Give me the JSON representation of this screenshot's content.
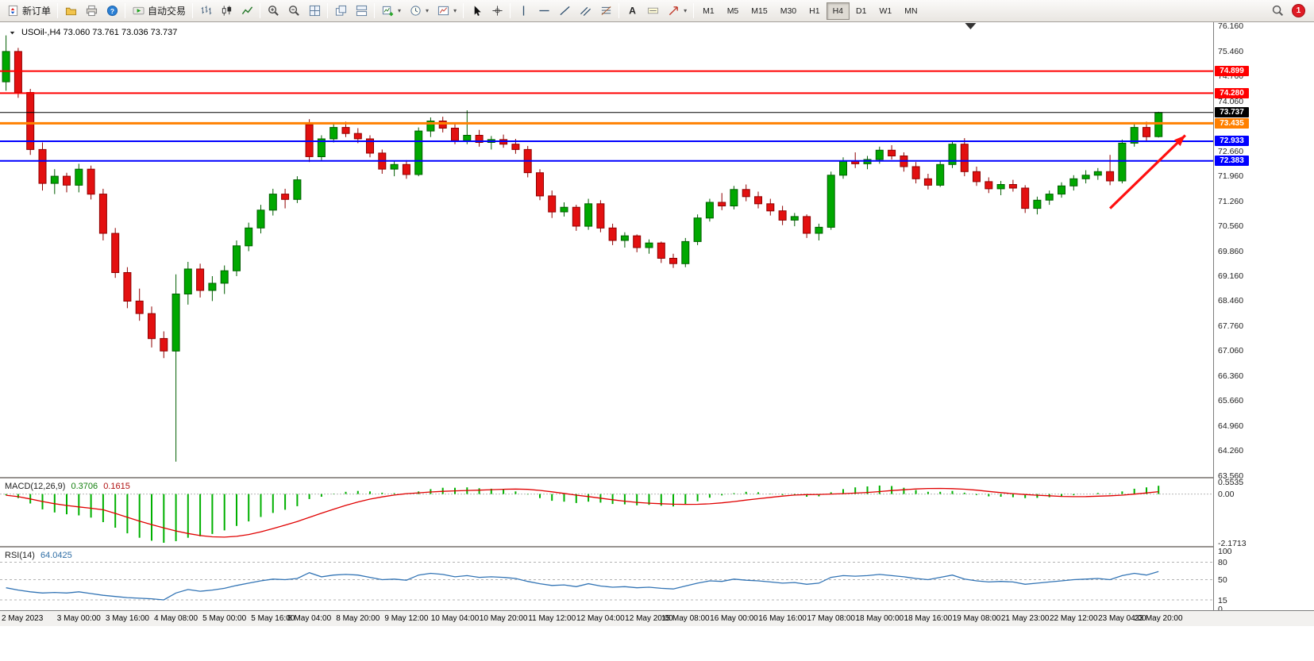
{
  "toolbar": {
    "groups": [
      {
        "name": "trade-group",
        "items": [
          {
            "name": "new-order",
            "icon": "new-order-icon",
            "label": "新订单"
          }
        ]
      },
      {
        "name": "window-group",
        "items": [
          {
            "name": "profiles",
            "icon": "profiles-icon"
          },
          {
            "name": "print",
            "icon": "print-icon"
          },
          {
            "name": "help",
            "icon": "info-icon"
          }
        ]
      },
      {
        "name": "autotrade-group",
        "items": [
          {
            "name": "auto-trading",
            "icon": "autotrade-icon",
            "label": "自动交易"
          }
        ]
      },
      {
        "name": "chart-type-group",
        "items": [
          {
            "name": "bars-chart",
            "icon": "bars-chart-icon"
          },
          {
            "name": "candlestick-chart",
            "icon": "candlestick-chart-icon"
          },
          {
            "name": "line-chart",
            "icon": "line-chart-icon"
          }
        ]
      },
      {
        "name": "zoom-group",
        "items": [
          {
            "name": "zoom-in",
            "icon": "zoom-in-icon"
          },
          {
            "name": "zoom-out",
            "icon": "zoom-out-icon"
          },
          {
            "name": "tile-windows",
            "icon": "tile-windows-icon"
          }
        ]
      },
      {
        "name": "arrange-group",
        "items": [
          {
            "name": "cascade-windows",
            "icon": "cascade-icon"
          },
          {
            "name": "tile-horizontal",
            "icon": "tile-horizontal-icon"
          }
        ]
      },
      {
        "name": "chart-tools-group",
        "items": [
          {
            "name": "new-chart",
            "icon": "new-chart-icon",
            "dropdown": true
          },
          {
            "name": "periods",
            "icon": "clock-icon",
            "dropdown": true
          },
          {
            "name": "templates",
            "icon": "template-icon",
            "dropdown": true
          }
        ]
      },
      {
        "name": "cursor-group",
        "items": [
          {
            "name": "cursor",
            "icon": "cursor-icon"
          },
          {
            "name": "crosshair",
            "icon": "crosshair-icon"
          }
        ]
      },
      {
        "name": "draw-group",
        "items": [
          {
            "name": "vertical-line",
            "icon": "vline-icon"
          },
          {
            "name": "horizontal-line",
            "icon": "hline-icon"
          },
          {
            "name": "trendline",
            "icon": "trendline-icon"
          },
          {
            "name": "equidistant-channel",
            "icon": "channel-icon"
          },
          {
            "name": "fibonacci",
            "icon": "fibonacci-icon"
          }
        ]
      },
      {
        "name": "text-group",
        "items": [
          {
            "name": "text",
            "icon": "text-icon"
          },
          {
            "name": "text-label",
            "icon": "label-icon"
          },
          {
            "name": "arrow-objects",
            "icon": "shapes-icon",
            "dropdown": true
          }
        ]
      }
    ],
    "timeframes": [
      "M1",
      "M5",
      "M15",
      "M30",
      "H1",
      "H4",
      "D1",
      "W1",
      "MN"
    ],
    "active_timeframe": "H4",
    "notification_count": "1"
  },
  "chart_data": {
    "type": "candlestick",
    "symbol": "USOil-",
    "timeframe": "H4",
    "title": "USOil-,H4  73.060 73.761 73.036 73.737",
    "current_ohlc": {
      "open": "73.060",
      "high": "73.761",
      "low": "73.036",
      "close": "73.737"
    },
    "colors": {
      "bull": "#00A800",
      "bull_dark": "#005E00",
      "bear": "#E31010",
      "bear_dark": "#8F0000",
      "macd_hist": "#00B000",
      "macd_signal": "#E00000",
      "rsi_line": "#3274B5",
      "level_dashed": "#9a9a9a",
      "arrow": "#FF0F0F",
      "background": "#FFFFFF"
    },
    "slots": 100,
    "price_range": [
      63.52,
      76.27
    ],
    "price_ticks": [
      "76.160",
      "75.460",
      "74.760",
      "74.060",
      "73.360",
      "72.660",
      "71.960",
      "71.260",
      "70.560",
      "69.860",
      "69.160",
      "68.460",
      "67.760",
      "67.060",
      "66.360",
      "65.660",
      "64.960",
      "64.260",
      "63.560"
    ],
    "hlines": [
      {
        "price": 74.899,
        "label": "74.899",
        "color": "#FF0000",
        "width": 2
      },
      {
        "price": 74.28,
        "label": "74.280",
        "color": "#FF0000",
        "width": 2
      },
      {
        "price": 73.737,
        "label": "73.737",
        "color": "#000000",
        "width": 1
      },
      {
        "price": 73.435,
        "label": "73.435",
        "color": "#FF8000",
        "width": 3
      },
      {
        "price": 72.933,
        "label": "72.933",
        "color": "#0000FF",
        "width": 2
      },
      {
        "price": 72.383,
        "label": "72.383",
        "color": "#0000FF",
        "width": 2
      }
    ],
    "arrow": {
      "from": {
        "slot": 91.0,
        "price": 71.05
      },
      "to": {
        "slot": 97.2,
        "price": 73.1
      }
    },
    "shift_marker_slot": 79.5,
    "candles": [
      [
        74.6,
        75.9,
        74.35,
        75.45
      ],
      [
        75.45,
        75.55,
        74.15,
        74.3
      ],
      [
        74.3,
        74.4,
        72.55,
        72.7
      ],
      [
        72.7,
        72.9,
        71.55,
        71.75
      ],
      [
        71.75,
        72.15,
        71.45,
        71.95
      ],
      [
        71.95,
        72.05,
        71.5,
        71.7
      ],
      [
        71.7,
        72.3,
        71.5,
        72.15
      ],
      [
        72.15,
        72.25,
        71.3,
        71.45
      ],
      [
        71.45,
        71.6,
        70.15,
        70.35
      ],
      [
        70.35,
        70.5,
        69.1,
        69.25
      ],
      [
        69.25,
        69.4,
        68.25,
        68.45
      ],
      [
        68.45,
        68.8,
        67.9,
        68.1
      ],
      [
        68.1,
        68.3,
        67.15,
        67.4
      ],
      [
        67.4,
        67.6,
        66.85,
        67.05
      ],
      [
        67.05,
        69.2,
        63.95,
        68.65
      ],
      [
        68.65,
        69.55,
        68.35,
        69.35
      ],
      [
        69.35,
        69.5,
        68.55,
        68.75
      ],
      [
        68.75,
        69.15,
        68.45,
        68.95
      ],
      [
        68.95,
        69.45,
        68.65,
        69.3
      ],
      [
        69.3,
        70.15,
        69.15,
        70.0
      ],
      [
        70.0,
        70.65,
        69.85,
        70.5
      ],
      [
        70.5,
        71.15,
        70.35,
        71.0
      ],
      [
        71.0,
        71.6,
        70.85,
        71.45
      ],
      [
        71.45,
        71.6,
        71.05,
        71.3
      ],
      [
        71.3,
        71.95,
        71.2,
        71.85
      ],
      [
        73.4,
        73.55,
        72.35,
        72.5
      ],
      [
        72.5,
        73.1,
        72.4,
        73.0
      ],
      [
        73.0,
        73.42,
        72.9,
        73.32
      ],
      [
        73.32,
        73.48,
        73.05,
        73.15
      ],
      [
        73.15,
        73.3,
        72.88,
        73.0
      ],
      [
        73.0,
        73.1,
        72.48,
        72.6
      ],
      [
        72.6,
        72.7,
        72.02,
        72.15
      ],
      [
        72.15,
        72.38,
        71.95,
        72.28
      ],
      [
        72.28,
        72.4,
        71.88,
        72.0
      ],
      [
        72.0,
        73.32,
        71.95,
        73.22
      ],
      [
        73.22,
        73.6,
        73.05,
        73.5
      ],
      [
        73.5,
        73.62,
        73.18,
        73.3
      ],
      [
        73.3,
        73.45,
        72.85,
        72.95
      ],
      [
        72.95,
        73.8,
        72.85,
        73.1
      ],
      [
        73.1,
        73.25,
        72.78,
        72.9
      ],
      [
        72.9,
        73.08,
        72.7,
        72.98
      ],
      [
        72.98,
        73.12,
        72.75,
        72.85
      ],
      [
        72.85,
        73.0,
        72.58,
        72.7
      ],
      [
        72.7,
        72.8,
        71.92,
        72.05
      ],
      [
        72.05,
        72.15,
        71.28,
        71.4
      ],
      [
        71.4,
        71.55,
        70.78,
        70.95
      ],
      [
        70.95,
        71.22,
        70.82,
        71.08
      ],
      [
        71.08,
        71.15,
        70.42,
        70.55
      ],
      [
        70.55,
        71.32,
        70.45,
        71.18
      ],
      [
        71.18,
        71.28,
        70.38,
        70.5
      ],
      [
        70.5,
        70.62,
        70.02,
        70.15
      ],
      [
        70.15,
        70.38,
        69.95,
        70.28
      ],
      [
        70.28,
        70.32,
        69.82,
        69.95
      ],
      [
        69.95,
        70.18,
        69.78,
        70.08
      ],
      [
        70.08,
        70.12,
        69.52,
        69.65
      ],
      [
        69.65,
        69.78,
        69.38,
        69.5
      ],
      [
        69.5,
        70.22,
        69.4,
        70.12
      ],
      [
        70.12,
        70.88,
        70.02,
        70.78
      ],
      [
        70.78,
        71.32,
        70.68,
        71.22
      ],
      [
        71.22,
        71.48,
        71.0,
        71.12
      ],
      [
        71.12,
        71.68,
        71.02,
        71.58
      ],
      [
        71.58,
        71.72,
        71.25,
        71.38
      ],
      [
        71.38,
        71.52,
        71.05,
        71.18
      ],
      [
        71.18,
        71.32,
        70.85,
        70.98
      ],
      [
        70.98,
        71.12,
        70.58,
        70.72
      ],
      [
        70.72,
        70.92,
        70.55,
        70.82
      ],
      [
        70.82,
        70.88,
        70.22,
        70.35
      ],
      [
        70.35,
        70.62,
        70.15,
        70.52
      ],
      [
        70.52,
        72.08,
        70.45,
        71.98
      ],
      [
        71.98,
        72.48,
        71.88,
        72.38
      ],
      [
        72.38,
        72.62,
        72.18,
        72.3
      ],
      [
        72.3,
        72.52,
        72.15,
        72.42
      ],
      [
        72.42,
        72.78,
        72.3,
        72.68
      ],
      [
        72.68,
        72.82,
        72.42,
        72.52
      ],
      [
        72.52,
        72.62,
        72.08,
        72.22
      ],
      [
        72.22,
        72.35,
        71.75,
        71.88
      ],
      [
        71.88,
        72.02,
        71.58,
        71.7
      ],
      [
        71.7,
        72.38,
        71.65,
        72.28
      ],
      [
        72.28,
        72.95,
        72.18,
        72.85
      ],
      [
        72.85,
        73.02,
        71.95,
        72.08
      ],
      [
        72.08,
        72.22,
        71.68,
        71.8
      ],
      [
        71.8,
        71.92,
        71.48,
        71.6
      ],
      [
        71.6,
        71.82,
        71.42,
        71.72
      ],
      [
        71.72,
        71.85,
        71.52,
        71.62
      ],
      [
        71.62,
        71.7,
        70.92,
        71.05
      ],
      [
        71.05,
        71.38,
        70.88,
        71.28
      ],
      [
        71.28,
        71.55,
        71.15,
        71.45
      ],
      [
        71.45,
        71.78,
        71.35,
        71.68
      ],
      [
        71.68,
        71.98,
        71.55,
        71.88
      ],
      [
        71.88,
        72.12,
        71.75,
        71.98
      ],
      [
        71.98,
        72.18,
        71.85,
        72.08
      ],
      [
        72.08,
        72.55,
        71.7,
        71.82
      ],
      [
        71.82,
        72.98,
        71.75,
        72.88
      ],
      [
        72.88,
        73.42,
        72.78,
        73.32
      ],
      [
        73.32,
        73.48,
        72.95,
        73.06
      ],
      [
        73.06,
        73.761,
        73.036,
        73.737
      ]
    ],
    "time_labels": [
      {
        "text": "2 May 2023",
        "index": 0
      },
      {
        "text": "3 May 00:00",
        "index": 6
      },
      {
        "text": "3 May 16:00",
        "index": 10
      },
      {
        "text": "4 May 08:00",
        "index": 14
      },
      {
        "text": "5 May 00:00",
        "index": 18
      },
      {
        "text": "5 May 16:00",
        "index": 22
      },
      {
        "text": "8 May 04:00",
        "index": 25
      },
      {
        "text": "8 May 20:00",
        "index": 29
      },
      {
        "text": "9 May 12:00",
        "index": 33
      },
      {
        "text": "10 May 04:00",
        "index": 37
      },
      {
        "text": "10 May 20:00",
        "index": 41
      },
      {
        "text": "11 May 12:00",
        "index": 45
      },
      {
        "text": "12 May 04:00",
        "index": 49
      },
      {
        "text": "12 May 20:00",
        "index": 53
      },
      {
        "text": "15 May 08:00",
        "index": 56
      },
      {
        "text": "16 May 00:00",
        "index": 60
      },
      {
        "text": "16 May 16:00",
        "index": 64
      },
      {
        "text": "17 May 08:00",
        "index": 68
      },
      {
        "text": "18 May 00:00",
        "index": 72
      },
      {
        "text": "18 May 16:00",
        "index": 76
      },
      {
        "text": "19 May 08:00",
        "index": 80
      },
      {
        "text": "21 May 23:00",
        "index": 84
      },
      {
        "text": "22 May 12:00",
        "index": 88
      },
      {
        "text": "23 May 04:00",
        "index": 92
      },
      {
        "text": "23 May 20:00",
        "index": 95
      }
    ],
    "macd": {
      "label": "MACD(12,26,9)",
      "value_main": "0.3706",
      "value_signal": "0.1615",
      "range": [
        -2.1713,
        0.5535
      ],
      "ticks": [
        {
          "text": "0.5535",
          "v": 0.5535
        },
        {
          "text": "0.00",
          "v": 0
        },
        {
          "text": "-2.1713",
          "v": -2.1713
        }
      ],
      "values": [
        -0.05,
        -0.18,
        -0.42,
        -0.68,
        -0.82,
        -0.9,
        -0.95,
        -1.05,
        -1.25,
        -1.5,
        -1.75,
        -1.95,
        -2.08,
        -2.17,
        -2.1,
        -1.95,
        -1.88,
        -1.78,
        -1.62,
        -1.42,
        -1.22,
        -1.02,
        -0.84,
        -0.7,
        -0.54,
        -0.22,
        -0.12,
        0.02,
        0.1,
        0.14,
        0.12,
        0.06,
        0.04,
        0.02,
        0.12,
        0.22,
        0.28,
        0.28,
        0.3,
        0.26,
        0.24,
        0.2,
        0.12,
        -0.02,
        -0.18,
        -0.3,
        -0.34,
        -0.4,
        -0.34,
        -0.38,
        -0.44,
        -0.46,
        -0.5,
        -0.48,
        -0.52,
        -0.55,
        -0.46,
        -0.32,
        -0.16,
        -0.06,
        0.04,
        0.1,
        0.08,
        0.02,
        -0.04,
        -0.06,
        -0.12,
        -0.1,
        0.08,
        0.22,
        0.3,
        0.34,
        0.38,
        0.36,
        0.28,
        0.18,
        0.1,
        0.1,
        0.14,
        0.06,
        -0.04,
        -0.1,
        -0.12,
        -0.14,
        -0.18,
        -0.17,
        -0.14,
        -0.1,
        -0.05,
        0.0,
        0.05,
        0.03,
        0.12,
        0.24,
        0.3,
        0.37
      ]
    },
    "rsi": {
      "label": "RSI(14)",
      "value": "64.0425",
      "range": [
        0,
        100
      ],
      "levels": [
        80,
        50,
        15
      ],
      "ticks": [
        {
          "text": "100",
          "v": 100
        },
        {
          "text": "80",
          "v": 80
        },
        {
          "text": "50",
          "v": 50
        },
        {
          "text": "15",
          "v": 15
        },
        {
          "text": "0",
          "v": 0
        }
      ],
      "values": [
        36,
        32,
        29,
        27,
        28,
        27,
        29,
        26,
        23,
        21,
        19,
        18,
        17,
        15,
        27,
        33,
        30,
        32,
        35,
        40,
        44,
        48,
        51,
        50,
        52,
        62,
        55,
        58,
        59,
        58,
        54,
        50,
        51,
        49,
        58,
        61,
        59,
        55,
        57,
        54,
        55,
        54,
        52,
        47,
        43,
        40,
        41,
        38,
        43,
        39,
        37,
        38,
        36,
        37,
        35,
        34,
        39,
        44,
        48,
        47,
        51,
        49,
        48,
        46,
        44,
        45,
        42,
        44,
        54,
        57,
        56,
        57,
        59,
        57,
        55,
        52,
        50,
        54,
        58,
        51,
        48,
        46,
        47,
        46,
        42,
        44,
        46,
        48,
        50,
        51,
        52,
        50,
        57,
        61,
        58,
        64
      ]
    }
  }
}
